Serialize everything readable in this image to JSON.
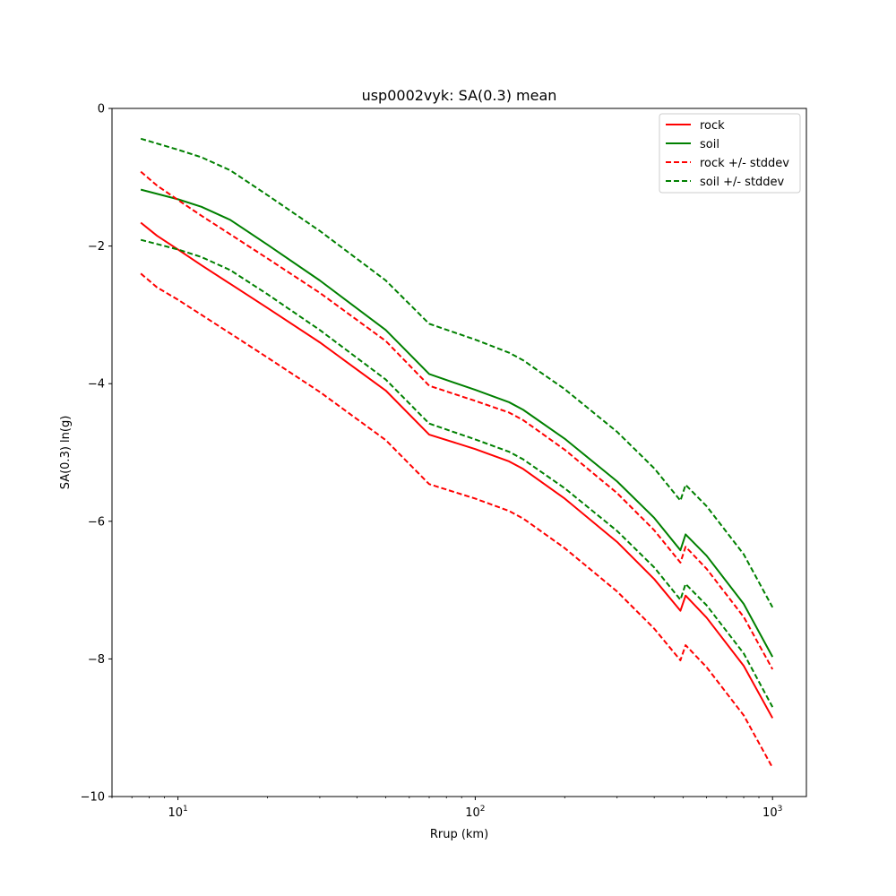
{
  "chart_data": {
    "type": "line",
    "title": "usp0002vyk: SA(0.3) mean",
    "xlabel": "Rrup (km)",
    "ylabel": "SA(0.3) ln(g)",
    "xscale": "log",
    "xlim": [
      6.0,
      1300.0
    ],
    "ylim": [
      -10,
      0
    ],
    "xticks": [
      {
        "value": 10,
        "base": "10",
        "exp": "1"
      },
      {
        "value": 100,
        "base": "10",
        "exp": "2"
      },
      {
        "value": 1000,
        "base": "10",
        "exp": "3"
      }
    ],
    "yticks": [
      {
        "value": 0,
        "label": "0"
      },
      {
        "value": -2,
        "label": "−2"
      },
      {
        "value": -4,
        "label": "−4"
      },
      {
        "value": -6,
        "label": "−6"
      },
      {
        "value": -8,
        "label": "−8"
      },
      {
        "value": -10,
        "label": "−10"
      }
    ],
    "grid": false,
    "legend_position": "top-right",
    "legend": [
      {
        "label": "rock",
        "color": "#ff0000",
        "style": "solid"
      },
      {
        "label": "soil",
        "color": "#008000",
        "style": "solid"
      },
      {
        "label": "rock +/- stddev",
        "color": "#ff0000",
        "style": "dashed"
      },
      {
        "label": "soil +/- stddev",
        "color": "#008000",
        "style": "dashed"
      }
    ],
    "series": [
      {
        "name": "rock",
        "color": "#ff0000",
        "style": "solid",
        "x": [
          7.5,
          8.5,
          10,
          12,
          15,
          20,
          30,
          50,
          70,
          100,
          130,
          145,
          200,
          300,
          400,
          490,
          510,
          600,
          800,
          1000
        ],
        "y": [
          -1.66,
          -1.85,
          -2.05,
          -2.28,
          -2.55,
          -2.9,
          -3.4,
          -4.1,
          -4.74,
          -4.95,
          -5.13,
          -5.24,
          -5.67,
          -6.3,
          -6.84,
          -7.3,
          -7.08,
          -7.4,
          -8.1,
          -8.86
        ]
      },
      {
        "name": "soil",
        "color": "#008000",
        "style": "solid",
        "x": [
          7.5,
          10,
          12,
          15,
          20,
          30,
          50,
          70,
          100,
          130,
          145,
          200,
          300,
          400,
          490,
          510,
          600,
          800,
          1000
        ],
        "y": [
          -1.18,
          -1.32,
          -1.43,
          -1.62,
          -1.98,
          -2.5,
          -3.22,
          -3.86,
          -4.09,
          -4.27,
          -4.38,
          -4.8,
          -5.42,
          -5.95,
          -6.42,
          -6.19,
          -6.5,
          -7.2,
          -7.97
        ]
      },
      {
        "name": "rock + stddev",
        "color": "#ff0000",
        "style": "dashed",
        "x": [
          7.5,
          8.5,
          10,
          12,
          15,
          20,
          30,
          50,
          70,
          100,
          130,
          145,
          200,
          300,
          400,
          490,
          510,
          600,
          800,
          1000
        ],
        "y": [
          -0.92,
          -1.12,
          -1.33,
          -1.56,
          -1.83,
          -2.18,
          -2.68,
          -3.38,
          -4.03,
          -4.25,
          -4.42,
          -4.53,
          -4.96,
          -5.59,
          -6.13,
          -6.6,
          -6.37,
          -6.69,
          -7.39,
          -8.15
        ]
      },
      {
        "name": "rock - stddev",
        "color": "#ff0000",
        "style": "dashed",
        "x": [
          7.5,
          8.5,
          10,
          12,
          15,
          20,
          30,
          50,
          70,
          100,
          130,
          145,
          200,
          300,
          400,
          490,
          510,
          600,
          800,
          1000
        ],
        "y": [
          -2.4,
          -2.6,
          -2.78,
          -3.0,
          -3.27,
          -3.62,
          -4.12,
          -4.82,
          -5.46,
          -5.67,
          -5.85,
          -5.96,
          -6.39,
          -7.02,
          -7.56,
          -8.02,
          -7.8,
          -8.12,
          -8.82,
          -9.58
        ]
      },
      {
        "name": "soil + stddev",
        "color": "#008000",
        "style": "dashed",
        "x": [
          7.5,
          10,
          12,
          15,
          20,
          30,
          50,
          70,
          100,
          130,
          145,
          200,
          300,
          400,
          490,
          510,
          600,
          800,
          1000
        ],
        "y": [
          -0.44,
          -0.6,
          -0.71,
          -0.9,
          -1.26,
          -1.78,
          -2.5,
          -3.13,
          -3.36,
          -3.55,
          -3.66,
          -4.08,
          -4.7,
          -5.23,
          -5.7,
          -5.47,
          -5.78,
          -6.48,
          -7.25
        ]
      },
      {
        "name": "soil - stddev",
        "color": "#008000",
        "style": "dashed",
        "x": [
          7.5,
          10,
          12,
          15,
          20,
          30,
          50,
          70,
          100,
          130,
          145,
          200,
          300,
          400,
          490,
          510,
          600,
          800,
          1000
        ],
        "y": [
          -1.91,
          -2.05,
          -2.16,
          -2.35,
          -2.7,
          -3.22,
          -3.94,
          -4.58,
          -4.81,
          -4.99,
          -5.1,
          -5.52,
          -6.14,
          -6.67,
          -7.14,
          -6.91,
          -7.22,
          -7.92,
          -8.7
        ]
      }
    ]
  }
}
